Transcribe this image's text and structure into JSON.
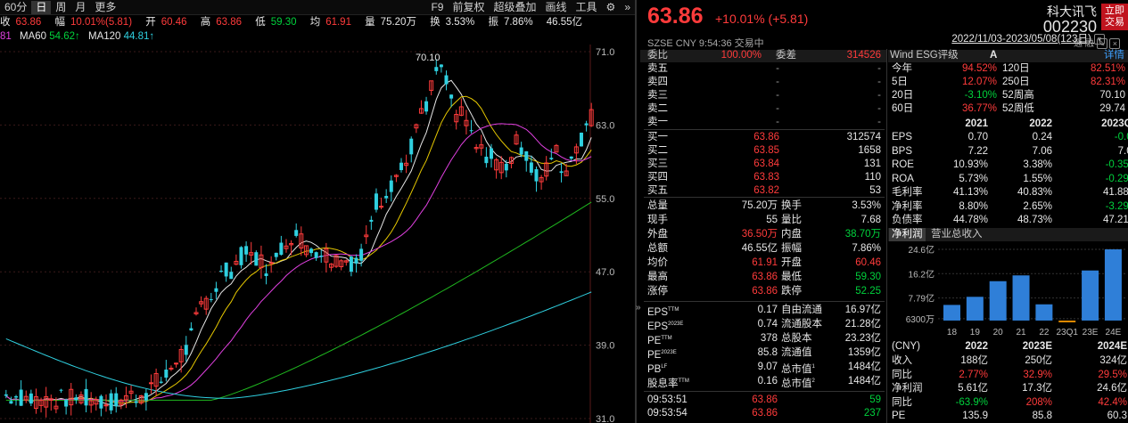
{
  "toolbar": {
    "items": [
      "60分",
      "日",
      "周",
      "月",
      "更多"
    ],
    "active": 1,
    "right_items": [
      "F9",
      "前复权",
      "超级叠加",
      "画线",
      "工具"
    ]
  },
  "quote": {
    "close_label": "收",
    "close": "63.86",
    "change_label": "幅",
    "change": "10.01%(5.81)",
    "open_label": "开",
    "open": "60.46",
    "high_label": "高",
    "high": "63.86",
    "low_label": "低",
    "low": "59.30",
    "avg_label": "均",
    "avg": "61.91",
    "vol_label": "量",
    "vol": "75.20万",
    "turn_label": "换",
    "turn": "3.53%",
    "amp_label": "振",
    "amp": "7.86%",
    "amt": "46.55亿"
  },
  "ma": {
    "prefix": "81",
    "ma60_label": "MA60",
    "ma60": "54.62↑",
    "ma120_label": "MA120",
    "ma120": "44.81↑",
    "range": "2022/11/03-2023/05/08(123日)"
  },
  "chart_data": {
    "type": "candlestick",
    "y_ticks": [
      "71.0",
      "63.0",
      "55.0",
      "47.0",
      "39.0",
      "31.0"
    ],
    "ylim": [
      31,
      71
    ],
    "peak_label": "70.10",
    "ma_series": [
      "MA5",
      "MA10",
      "MA20",
      "MA60",
      "MA120"
    ],
    "colors": {
      "up": "#ff3b3b",
      "down": "#2fd0e0",
      "ma5": "#e6e6e6",
      "ma10": "#e6c800",
      "ma20": "#e040e0",
      "ma60": "#1fb81f",
      "ma120": "#2fd0e0"
    }
  },
  "header": {
    "price": "63.86",
    "change": "+10.01% (+5.81)",
    "name": "科大讯飞",
    "code": "002230",
    "market": "SZSE",
    "currency": "CNY",
    "time": "9:54:36",
    "status": "交易中",
    "btn": "立即交易",
    "icons": [
      "通",
      "融"
    ]
  },
  "orderbook": {
    "ratio_label": "委比",
    "ratio": "100.00%",
    "diff_label": "委差",
    "diff": "314526",
    "sells": [
      [
        "卖五",
        "-",
        "-"
      ],
      [
        "卖四",
        "-",
        "-"
      ],
      [
        "卖三",
        "-",
        "-"
      ],
      [
        "卖二",
        "-",
        "-"
      ],
      [
        "卖一",
        "-",
        "-"
      ]
    ],
    "buys": [
      [
        "买一",
        "63.86",
        "312574"
      ],
      [
        "买二",
        "63.85",
        "1658"
      ],
      [
        "买三",
        "63.84",
        "131"
      ],
      [
        "买四",
        "63.83",
        "110"
      ],
      [
        "买五",
        "63.82",
        "53"
      ]
    ]
  },
  "stats": [
    [
      "总量",
      "75.20万",
      "换手",
      "3.53%"
    ],
    [
      "现手",
      "55",
      "量比",
      "7.68"
    ],
    [
      "外盘",
      "36.50万",
      "内盘",
      "38.70万"
    ],
    [
      "总额",
      "46.55亿",
      "振幅",
      "7.86%"
    ],
    [
      "均价",
      "61.91",
      "开盘",
      "60.46"
    ],
    [
      "最高",
      "63.86",
      "最低",
      "59.30"
    ],
    [
      "涨停",
      "63.86",
      "跌停",
      "52.25"
    ]
  ],
  "valuation": [
    [
      "EPS",
      "TTM",
      "0.17",
      "自由流通",
      "",
      "16.97亿"
    ],
    [
      "EPS",
      "2023E",
      "0.74",
      "流通股本",
      "",
      "21.28亿"
    ],
    [
      "PE",
      "TTM",
      "378",
      "总股本",
      "",
      "23.23亿"
    ],
    [
      "PE",
      "2023E",
      "85.8",
      "流通值",
      "",
      "1359亿"
    ],
    [
      "PB",
      "LF",
      "9.07",
      "总市值",
      "1",
      "1484亿"
    ],
    [
      "股息率",
      "TTM",
      "0.16",
      "总市值",
      "2",
      "1484亿"
    ]
  ],
  "ticks": [
    [
      "09:53:51",
      "63.86",
      "59"
    ],
    [
      "09:53:54",
      "63.86",
      "237"
    ]
  ],
  "esg": {
    "label": "Wind ESG评级",
    "rating": "A",
    "detail": "详情",
    "returns": [
      [
        "今年",
        "94.52%",
        "120日",
        "82.51%"
      ],
      [
        "5日",
        "12.07%",
        "250日",
        "82.31%"
      ],
      [
        "20日",
        "-3.10%",
        "52周高",
        "70.10"
      ],
      [
        "60日",
        "36.77%",
        "52周低",
        "29.74"
      ]
    ]
  },
  "fin": {
    "years": [
      "2021",
      "2022",
      "2023Q1"
    ],
    "rows": [
      [
        "EPS",
        "0.70",
        "0.24",
        "-0.03"
      ],
      [
        "BPS",
        "7.22",
        "7.06",
        "7.04"
      ],
      [
        "ROE",
        "10.93%",
        "3.38%",
        "-0.35%"
      ],
      [
        "ROA",
        "5.73%",
        "1.55%",
        "-0.29%"
      ],
      [
        "毛利率",
        "41.13%",
        "40.83%",
        "41.88%"
      ],
      [
        "净利率",
        "8.80%",
        "2.65%",
        "-3.29%"
      ],
      [
        "负债率",
        "44.78%",
        "48.73%",
        "47.21%"
      ]
    ]
  },
  "profit_chart": {
    "tabs": [
      "净利润",
      "营业总收入"
    ],
    "y_ticks": [
      "24.6亿",
      "16.2亿",
      "7.79亿",
      "6300万"
    ],
    "categories": [
      "18",
      "19",
      "20",
      "21",
      "22",
      "23Q1",
      "23E",
      "24E"
    ],
    "values": [
      5.4,
      8.2,
      13.6,
      15.6,
      5.6,
      -0.6,
      17.3,
      24.6
    ],
    "ylim": [
      -0.63,
      24.6
    ]
  },
  "forecast": {
    "headers": [
      "(CNY)",
      "2022",
      "2023E",
      "2024E"
    ],
    "rows": [
      [
        "收入",
        "188亿",
        "250亿",
        "324亿"
      ],
      [
        "同比",
        "2.77%",
        "32.9%",
        "29.5%"
      ],
      [
        "净利润",
        "5.61亿",
        "17.3亿",
        "24.6亿"
      ],
      [
        "同比",
        "-63.9%",
        "208%",
        "42.4%"
      ],
      [
        "PE",
        "135.9",
        "85.8",
        "60.3"
      ]
    ]
  }
}
